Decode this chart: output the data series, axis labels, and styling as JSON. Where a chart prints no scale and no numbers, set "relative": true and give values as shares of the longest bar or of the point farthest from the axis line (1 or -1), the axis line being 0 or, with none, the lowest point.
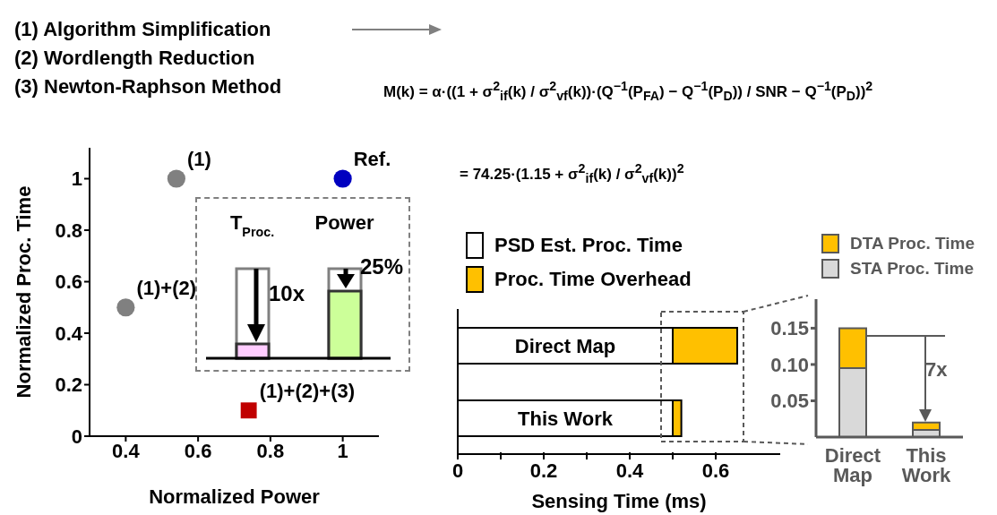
{
  "chart_data": [
    {
      "type": "other",
      "annotations": [
        "(1) Algorithm Simplification",
        "(2) Wordlength Reduction",
        "(3) Newton-Raphson Method",
        "M(k) = α·((1 + σ$^{2}$$_{if}$(k) / σ$^{2}$$_{vf}$(k))·(Q$^{−1}$(P$_{FA}$) − Q$^{−1}$(P$_{D}$)) / SNR − Q$^{−1}$(P$_{D}$))$^{2}$",
        "= 74.25·(1.15 + σ$^{2}$$_{if}$(k) / σ$^{2}$$_{vf}$(k))$^{2}$"
      ]
    },
    {
      "type": "scatter",
      "xlabel": "Normalized Power",
      "ylabel": "Normalized Proc. Time",
      "xlim": [
        0.3,
        1.1
      ],
      "ylim": [
        0,
        1.12
      ],
      "xticks": [
        0.4,
        0.6,
        0.8,
        1
      ],
      "yticks": [
        0,
        0.2,
        0.4,
        0.6,
        0.8,
        1
      ],
      "series": [
        {
          "name": "(1)",
          "color": "#808080",
          "marker": "circle",
          "x": [
            0.54
          ],
          "values": [
            1
          ]
        },
        {
          "name": "(1)+(2)",
          "color": "#808080",
          "marker": "circle",
          "x": [
            0.4
          ],
          "values": [
            0.5
          ]
        },
        {
          "name": "(1)+(2)+(3)",
          "color": "#c00000",
          "marker": "square",
          "x": [
            0.74
          ],
          "values": [
            0.1
          ]
        },
        {
          "name": "Ref.",
          "color": "#0000c0",
          "marker": "circle",
          "x": [
            1
          ],
          "values": [
            1
          ]
        }
      ]
    },
    {
      "type": "bar",
      "relative": true,
      "categories": [
        "T$_{Proc.}$",
        "Power"
      ],
      "annotations": [
        "10x",
        "25%"
      ],
      "series": [
        {
          "color": "#808080",
          "values": [
            1,
            1
          ]
        },
        {
          "colors": [
            "#ffccff",
            "#ccff99"
          ],
          "values": [
            0.16,
            0.75
          ]
        }
      ]
    },
    {
      "type": "bar",
      "orientation": "horizontal",
      "stacked": true,
      "xlabel": "Sensing Time (ms)",
      "categories": [
        "Direct Map",
        "This Work"
      ],
      "xlim": [
        0,
        0.75
      ],
      "xticks": [
        0,
        {
          "value": 0.1,
          "label": null
        },
        0.2,
        {
          "value": 0.3,
          "label": null
        },
        0.4,
        {
          "value": 0.5,
          "label": null
        },
        0.6
      ],
      "legend": "top left",
      "series": [
        {
          "name": "PSD Est. Proc. Time",
          "color": "#ffffff",
          "values": [
            0.5,
            0.5
          ]
        },
        {
          "name": "Proc. Time Overhead",
          "color": "#ffc000",
          "values": [
            0.15,
            0.02
          ]
        }
      ]
    },
    {
      "type": "bar",
      "stacked": true,
      "categories": [
        "Direct Map",
        "This Work"
      ],
      "ylim": [
        0,
        0.19
      ],
      "yticks": [
        0.05,
        {
          "value": 0.1,
          "label": "0.10"
        },
        0.15
      ],
      "legend": "top",
      "annotations": [
        "7x"
      ],
      "series": [
        {
          "name": "STA Proc. Time",
          "color": "#d9d9d9",
          "values": [
            0.095,
            0.01
          ]
        },
        {
          "name": "DTA Proc. Time",
          "color": "#ffc000",
          "values": [
            0.055,
            0.01
          ]
        }
      ]
    }
  ]
}
